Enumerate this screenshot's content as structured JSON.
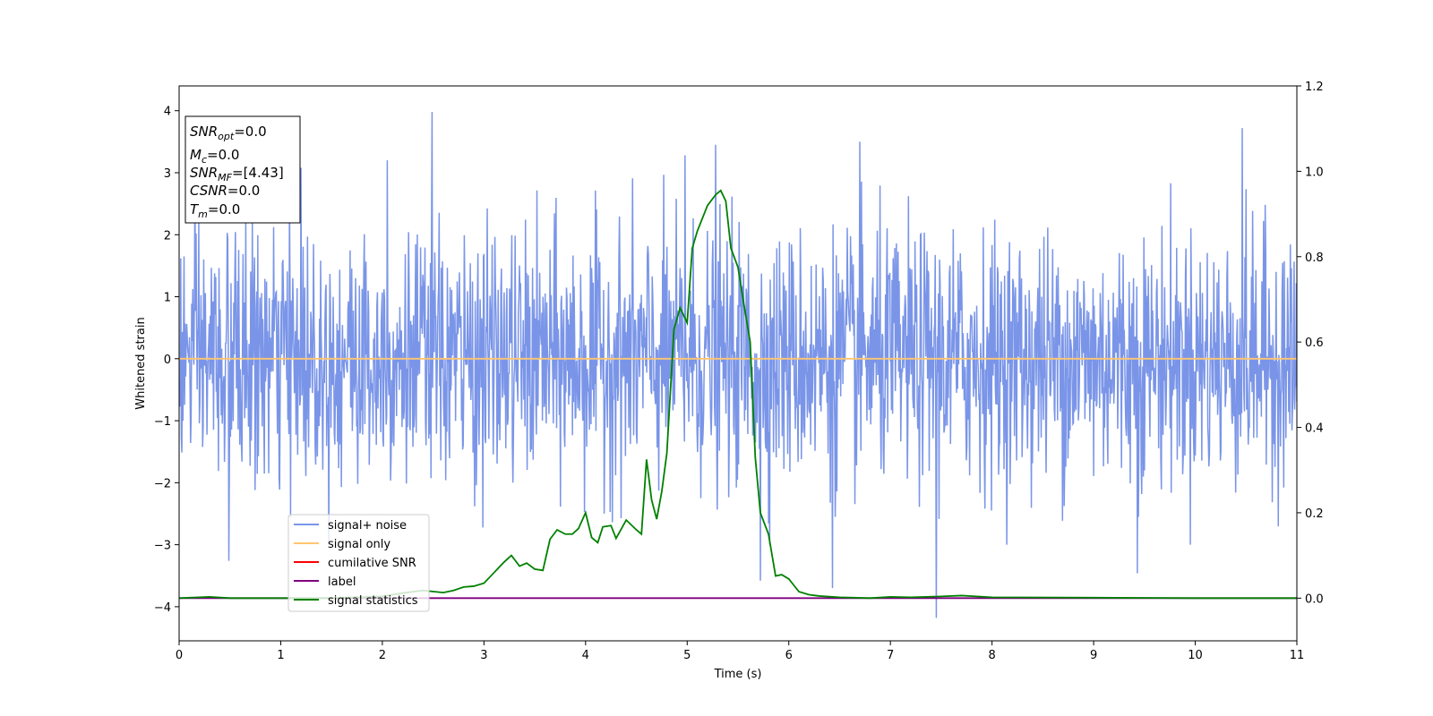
{
  "chart_data": {
    "type": "line",
    "title": "",
    "xlabel": "Time (s)",
    "ylabel": "Whitened strain",
    "y2label": "",
    "xlim": [
      0,
      11
    ],
    "ylim": [
      -4.55,
      4.4
    ],
    "y2lim": [
      -0.1,
      1.2
    ],
    "x_ticks": [
      0,
      1,
      2,
      3,
      4,
      5,
      6,
      7,
      8,
      9,
      10,
      11
    ],
    "y_ticks": [
      -4,
      -3,
      -2,
      -1,
      0,
      1,
      2,
      3,
      4
    ],
    "y2_ticks": [
      "0.0",
      "0.2",
      "0.4",
      "0.6",
      "0.8",
      "1.0",
      "1.2"
    ],
    "grid": false,
    "legend_position": "lower-left",
    "info_box": {
      "snr_opt": {
        "base": "SNR",
        "sub": "opt",
        "value": "=0.0"
      },
      "mc": {
        "base": "M",
        "sub": "c",
        "value": "=0.0"
      },
      "snr_mf": {
        "base": "SNR",
        "sub": "MF",
        "value": "=[4.43]"
      },
      "csnr": {
        "base": "CSNR",
        "sub": "",
        "value": "=0.0"
      },
      "tm": {
        "base": "T",
        "sub": "m",
        "value": "=0.0"
      }
    },
    "series": [
      {
        "name": "signal+ noise",
        "color": "#7a95e8",
        "axis": "left",
        "kind": "noise",
        "sample_rate_hz": 186,
        "amplitude_sigma": 1.0,
        "peaks": [
          {
            "x": 2.49,
            "y": 3.98
          },
          {
            "x": 2.05,
            "y": 3.2
          },
          {
            "x": 1.2,
            "y": 3.08
          },
          {
            "x": 4.98,
            "y": 3.28
          },
          {
            "x": 5.28,
            "y": 3.45
          },
          {
            "x": 6.7,
            "y": 3.5
          },
          {
            "x": 10.46,
            "y": 3.72
          },
          {
            "x": 7.45,
            "y": -4.18
          },
          {
            "x": 0.49,
            "y": -3.26
          },
          {
            "x": 6.43,
            "y": -3.7
          },
          {
            "x": 5.72,
            "y": -3.58
          },
          {
            "x": 9.43,
            "y": -3.46
          }
        ]
      },
      {
        "name": "signal only",
        "color": "#ffc66e",
        "axis": "left",
        "x": [
          0,
          11
        ],
        "y": [
          0,
          0
        ]
      },
      {
        "name": "cumilative SNR",
        "color": "#ff0000",
        "axis": "right",
        "x": [],
        "y": []
      },
      {
        "name": "label",
        "color": "#800080",
        "axis": "right",
        "x": [
          0,
          11
        ],
        "y": [
          0,
          0
        ]
      },
      {
        "name": "signal statistics",
        "color": "#008000",
        "axis": "right",
        "x": [
          0,
          0.3,
          0.5,
          1.0,
          1.5,
          2.0,
          2.2,
          2.4,
          2.6,
          2.7,
          2.8,
          2.9,
          3.0,
          3.1,
          3.2,
          3.27,
          3.35,
          3.42,
          3.5,
          3.58,
          3.65,
          3.72,
          3.8,
          3.87,
          3.93,
          4.0,
          4.06,
          4.12,
          4.17,
          4.25,
          4.3,
          4.4,
          4.5,
          4.55,
          4.6,
          4.65,
          4.7,
          4.75,
          4.8,
          4.87,
          4.93,
          5.0,
          5.05,
          5.1,
          5.2,
          5.28,
          5.33,
          5.38,
          5.43,
          5.5,
          5.55,
          5.62,
          5.67,
          5.72,
          5.8,
          5.87,
          5.93,
          6.0,
          6.05,
          6.1,
          6.2,
          6.3,
          6.5,
          6.8,
          7.0,
          7.2,
          7.5,
          7.7,
          8.0,
          9.0,
          10.0,
          11.0
        ],
        "y": [
          0.0,
          0.003,
          0.0,
          0.0,
          0.0,
          0.004,
          0.012,
          0.018,
          0.013,
          0.018,
          0.026,
          0.028,
          0.035,
          0.06,
          0.085,
          0.1,
          0.075,
          0.082,
          0.068,
          0.065,
          0.138,
          0.16,
          0.15,
          0.15,
          0.163,
          0.2,
          0.142,
          0.13,
          0.167,
          0.17,
          0.14,
          0.183,
          0.16,
          0.15,
          0.325,
          0.23,
          0.185,
          0.25,
          0.34,
          0.63,
          0.68,
          0.645,
          0.82,
          0.86,
          0.92,
          0.945,
          0.955,
          0.93,
          0.82,
          0.775,
          0.7,
          0.6,
          0.33,
          0.2,
          0.15,
          0.052,
          0.055,
          0.045,
          0.03,
          0.015,
          0.008,
          0.005,
          0.002,
          0.0,
          0.003,
          0.002,
          0.004,
          0.006,
          0.002,
          0.001,
          0.0,
          0.0
        ]
      }
    ]
  }
}
